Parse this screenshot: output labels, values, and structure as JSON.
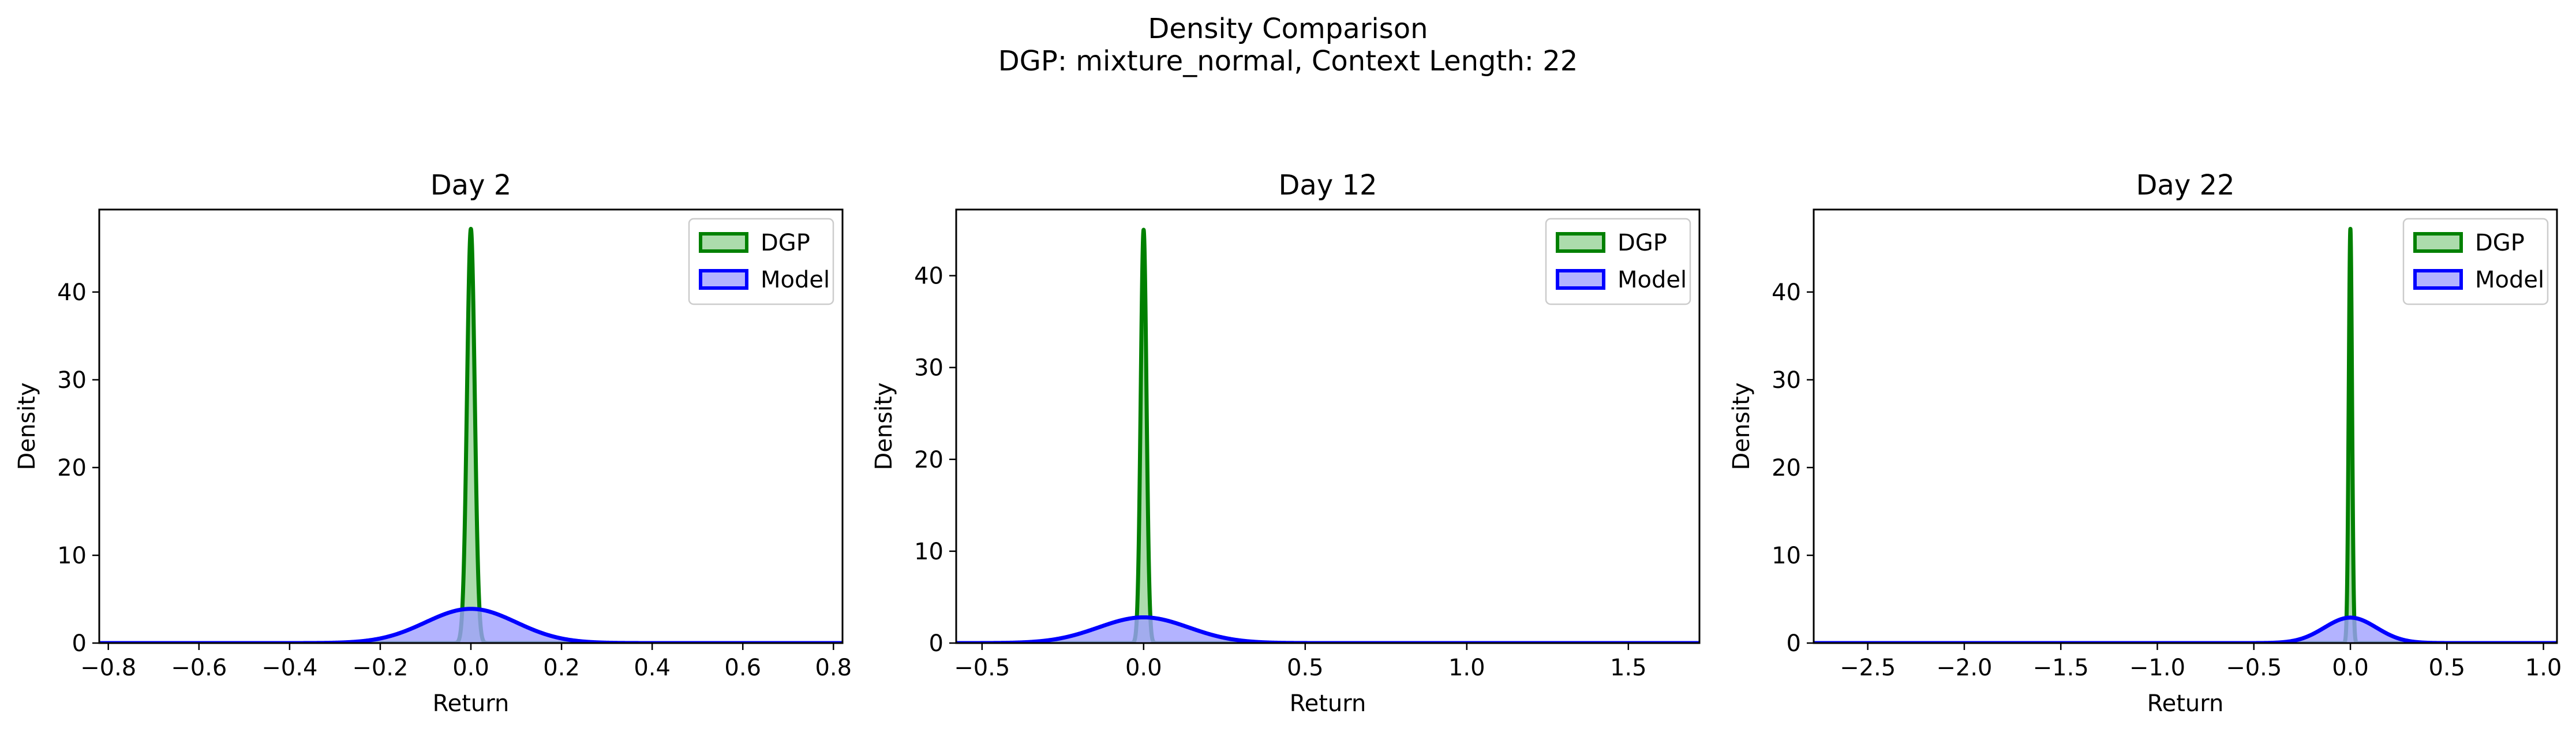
{
  "figure": {
    "title_line1": "Density Comparison",
    "title_line2": "DGP: mixture_normal, Context Length: 22"
  },
  "colors": {
    "dgp": "#008000",
    "dgp_fill": "#90d090",
    "model": "#0000ff",
    "model_fill": "#a0a0ff"
  },
  "chart_data": [
    {
      "type": "area",
      "title": "Day 2",
      "xlabel": "Return",
      "ylabel": "Density",
      "xlim": [
        -0.82,
        0.82
      ],
      "ylim": [
        0,
        49.4
      ],
      "xticks": [
        -0.8,
        -0.6,
        -0.4,
        -0.2,
        0.0,
        0.2,
        0.4,
        0.6,
        0.8
      ],
      "xtick_labels": [
        "−0.8",
        "−0.6",
        "−0.4",
        "−0.2",
        "0.0",
        "0.2",
        "0.4",
        "0.6",
        "0.8"
      ],
      "yticks": [
        0,
        10,
        20,
        30,
        40
      ],
      "ytick_labels": [
        "0",
        "10",
        "20",
        "30",
        "40"
      ],
      "legend_position": "upper right",
      "series": [
        {
          "name": "DGP",
          "kind": "gaussian",
          "mean": 0.0,
          "peak": 47.2,
          "sd": 0.0085
        },
        {
          "name": "Model",
          "kind": "gaussian",
          "mean": 0.0,
          "peak": 3.9,
          "sd": 0.1
        }
      ]
    },
    {
      "type": "area",
      "title": "Day 12",
      "xlabel": "Return",
      "ylabel": "Density",
      "xlim": [
        -0.58,
        1.72
      ],
      "ylim": [
        0,
        47.2
      ],
      "xticks": [
        -0.5,
        0.0,
        0.5,
        1.0,
        1.5
      ],
      "xtick_labels": [
        "−0.5",
        "0.0",
        "0.5",
        "1.0",
        "1.5"
      ],
      "yticks": [
        0,
        10,
        20,
        30,
        40
      ],
      "ytick_labels": [
        "0",
        "10",
        "20",
        "30",
        "40"
      ],
      "legend_position": "upper right",
      "series": [
        {
          "name": "DGP",
          "kind": "gaussian",
          "mean": 0.0,
          "peak": 45.0,
          "sd": 0.0089
        },
        {
          "name": "Model",
          "kind": "gaussian",
          "mean": 0.0,
          "peak": 2.8,
          "sd": 0.14
        }
      ]
    },
    {
      "type": "area",
      "title": "Day 22",
      "xlabel": "Return",
      "ylabel": "Density",
      "xlim": [
        -2.78,
        1.07
      ],
      "ylim": [
        0,
        49.4
      ],
      "xticks": [
        -2.5,
        -2.0,
        -1.5,
        -1.0,
        -0.5,
        0.0,
        0.5,
        1.0
      ],
      "xtick_labels": [
        "−2.5",
        "−2.0",
        "−1.5",
        "−1.0",
        "−0.5",
        "0.0",
        "0.5",
        "1.0"
      ],
      "yticks": [
        0,
        10,
        20,
        30,
        40
      ],
      "ytick_labels": [
        "0",
        "10",
        "20",
        "30",
        "40"
      ],
      "legend_position": "upper right",
      "series": [
        {
          "name": "DGP",
          "kind": "gaussian",
          "mean": 0.0,
          "peak": 47.2,
          "sd": 0.0085
        },
        {
          "name": "Model",
          "kind": "gaussian",
          "mean": 0.0,
          "peak": 2.9,
          "sd": 0.135
        }
      ]
    }
  ]
}
